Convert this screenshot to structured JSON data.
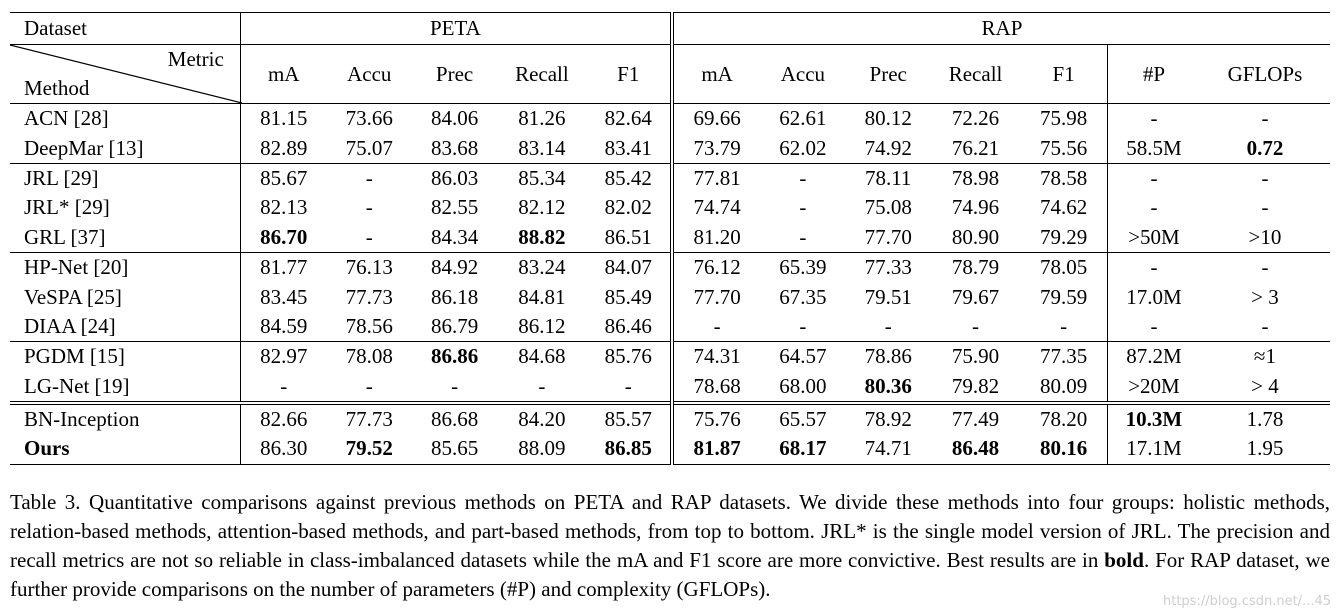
{
  "table": {
    "header": {
      "dataset_label": "Dataset",
      "metric_label": "Metric",
      "method_label": "Method",
      "groups": [
        "PETA",
        "RAP"
      ],
      "columns": [
        "mA",
        "Accu",
        "Prec",
        "Recall",
        "F1",
        "mA",
        "Accu",
        "Prec",
        "Recall",
        "F1",
        "#P",
        "GFLOPs"
      ]
    },
    "rows": [
      {
        "method": "ACN [28]",
        "values": [
          "81.15",
          "73.66",
          "84.06",
          "81.26",
          "82.64",
          "69.66",
          "62.61",
          "80.12",
          "72.26",
          "75.98",
          "-",
          "-"
        ],
        "bold": []
      },
      {
        "method": "DeepMar [13]",
        "values": [
          "82.89",
          "75.07",
          "83.68",
          "83.14",
          "83.41",
          "73.79",
          "62.02",
          "74.92",
          "76.21",
          "75.56",
          "58.5M",
          "0.72"
        ],
        "bold": [
          11
        ]
      },
      {
        "method": "JRL [29]",
        "values": [
          "85.67",
          "-",
          "86.03",
          "85.34",
          "85.42",
          "77.81",
          "-",
          "78.11",
          "78.98",
          "78.58",
          "-",
          "-"
        ],
        "bold": []
      },
      {
        "method": "JRL* [29]",
        "values": [
          "82.13",
          "-",
          "82.55",
          "82.12",
          "82.02",
          "74.74",
          "-",
          "75.08",
          "74.96",
          "74.62",
          "-",
          "-"
        ],
        "bold": []
      },
      {
        "method": "GRL [37]",
        "values": [
          "86.70",
          "-",
          "84.34",
          "88.82",
          "86.51",
          "81.20",
          "-",
          "77.70",
          "80.90",
          "79.29",
          ">50M",
          ">10"
        ],
        "bold": [
          0,
          3
        ]
      },
      {
        "method": "HP-Net [20]",
        "values": [
          "81.77",
          "76.13",
          "84.92",
          "83.24",
          "84.07",
          "76.12",
          "65.39",
          "77.33",
          "78.79",
          "78.05",
          "-",
          "-"
        ],
        "bold": []
      },
      {
        "method": "VeSPA [25]",
        "values": [
          "83.45",
          "77.73",
          "86.18",
          "84.81",
          "85.49",
          "77.70",
          "67.35",
          "79.51",
          "79.67",
          "79.59",
          "17.0M",
          "> 3"
        ],
        "bold": []
      },
      {
        "method": "DIAA [24]",
        "values": [
          "84.59",
          "78.56",
          "86.79",
          "86.12",
          "86.46",
          "-",
          "-",
          "-",
          "-",
          "-",
          "-",
          "-"
        ],
        "bold": []
      },
      {
        "method": "PGDM [15]",
        "values": [
          "82.97",
          "78.08",
          "86.86",
          "84.68",
          "85.76",
          "74.31",
          "64.57",
          "78.86",
          "75.90",
          "77.35",
          "87.2M",
          "≈1"
        ],
        "bold": [
          2
        ]
      },
      {
        "method": "LG-Net [19]",
        "values": [
          "-",
          "-",
          "-",
          "-",
          "-",
          "78.68",
          "68.00",
          "80.36",
          "79.82",
          "80.09",
          ">20M",
          "> 4"
        ],
        "bold": [
          7
        ]
      },
      {
        "method": "BN-Inception",
        "values": [
          "82.66",
          "77.73",
          "86.68",
          "84.20",
          "85.57",
          "75.76",
          "65.57",
          "78.92",
          "77.49",
          "78.20",
          "10.3M",
          "1.78"
        ],
        "bold": [
          10
        ]
      },
      {
        "method": "Ours",
        "values": [
          "86.30",
          "79.52",
          "85.65",
          "88.09",
          "86.85",
          "81.87",
          "68.17",
          "74.71",
          "86.48",
          "80.16",
          "17.1M",
          "1.95"
        ],
        "bold": [
          1,
          4,
          5,
          6,
          8,
          9
        ],
        "method_bold": true
      }
    ]
  },
  "caption": {
    "text_before_bold": "Table 3. Quantitative comparisons against previous methods on PETA and RAP datasets. We divide these methods into four groups: holistic methods, relation-based methods, attention-based methods, and part-based methods, from top to bottom. JRL* is the single model version of JRL. The precision and recall metrics are not so reliable in class-imbalanced datasets while the mA and F1 score are more convictive. Best results are in ",
    "bold_word": "bold",
    "text_after_bold": ". For RAP dataset, we further provide comparisons on the number of parameters (#P) and complexity (GFLOPs)."
  },
  "watermark": "https://blog.csdn.net/...45"
}
